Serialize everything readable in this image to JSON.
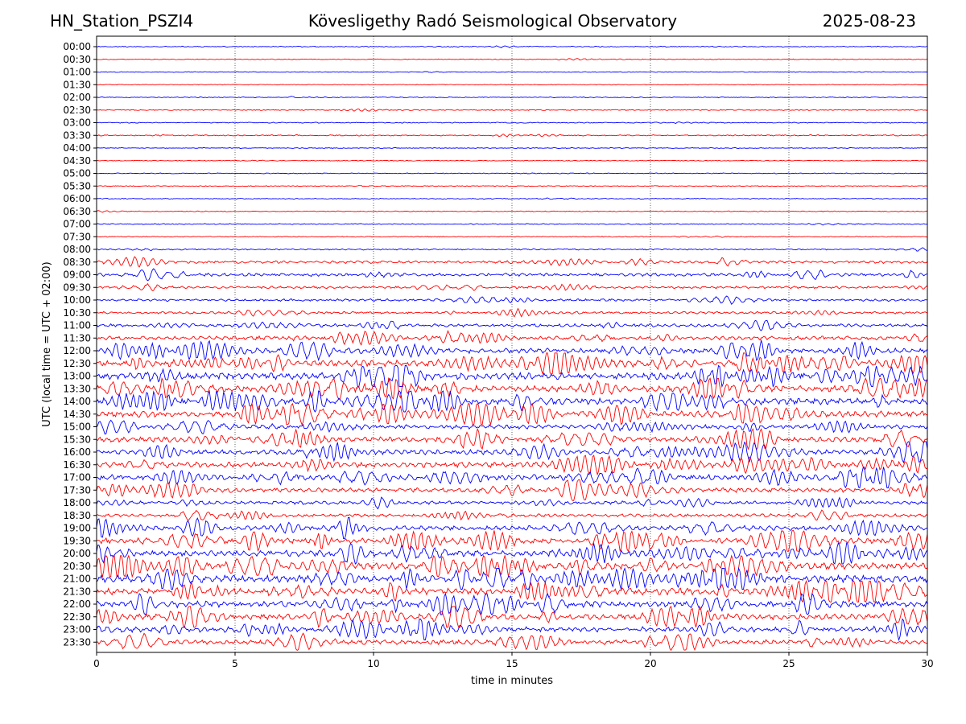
{
  "header": {
    "station": "HN_Station_PSZI4",
    "title": "Kövesligethy Radó Seismological Observatory",
    "date": "2025-08-23"
  },
  "chart_data": {
    "type": "line",
    "title": "Kövesligethy Radó Seismological Observatory",
    "xlabel": "time in minutes",
    "ylabel": "UTC (local time = UTC + 02:00)",
    "xlim": [
      0,
      30
    ],
    "x_ticks": [
      0,
      5,
      10,
      15,
      20,
      25,
      30
    ],
    "grid": "vertical dotted lines at 5, 10, 15, 20, 25",
    "row_labels": [
      "00:00",
      "00:30",
      "01:00",
      "01:30",
      "02:00",
      "02:30",
      "03:00",
      "03:30",
      "04:00",
      "04:30",
      "05:00",
      "05:30",
      "06:00",
      "06:30",
      "07:00",
      "07:30",
      "08:00",
      "08:30",
      "09:00",
      "09:30",
      "10:00",
      "10:30",
      "11:00",
      "11:30",
      "12:00",
      "12:30",
      "13:00",
      "13:30",
      "14:00",
      "14:30",
      "15:00",
      "15:30",
      "16:00",
      "16:30",
      "17:00",
      "17:30",
      "18:00",
      "18:30",
      "19:00",
      "19:30",
      "20:00",
      "20:30",
      "21:00",
      "21:30",
      "22:00",
      "22:30",
      "23:00",
      "23:30"
    ],
    "colors": {
      "even_rows": "#0000ff",
      "odd_rows": "#ff0000",
      "axes": "#000000"
    },
    "activity": [
      0.06,
      0.05,
      0.04,
      0.03,
      0.06,
      0.07,
      0.06,
      0.1,
      0.04,
      0.04,
      0.05,
      0.04,
      0.05,
      0.06,
      0.07,
      0.06,
      0.12,
      0.3,
      0.35,
      0.25,
      0.25,
      0.25,
      0.35,
      0.45,
      0.6,
      0.75,
      0.85,
      0.8,
      0.85,
      0.75,
      0.5,
      0.65,
      0.6,
      0.65,
      0.7,
      0.55,
      0.4,
      0.35,
      0.55,
      0.7,
      0.75,
      0.8,
      0.85,
      0.8,
      0.75,
      0.7,
      0.65,
      0.55
    ]
  }
}
